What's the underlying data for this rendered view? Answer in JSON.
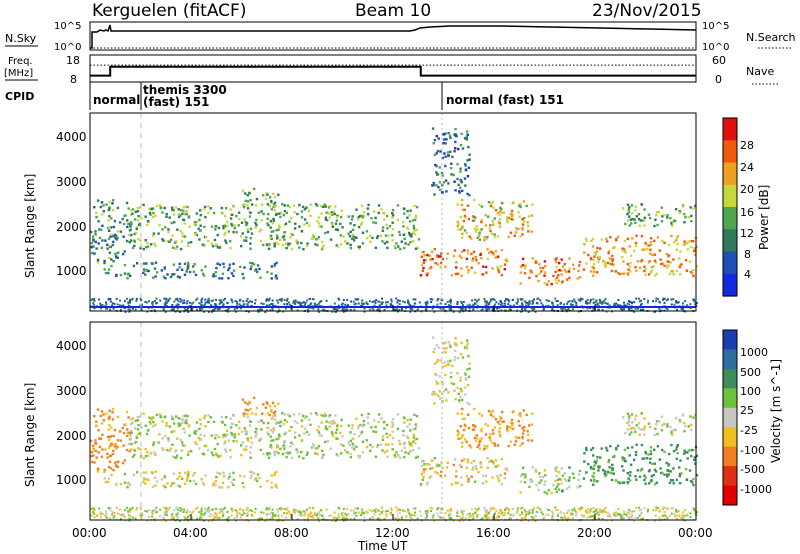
{
  "header": {
    "station": "Kerguelen (fitACF)",
    "beam": "Beam 10",
    "date": "23/Nov/2015"
  },
  "nsky": {
    "label": "N.Sky",
    "tick_top": "10^5",
    "tick_bottom": "10^0",
    "right_label": "N.Search",
    "right_tick_top": "10^5",
    "right_tick_bottom": "10^0"
  },
  "freq": {
    "label_line1": "Freq.",
    "label_line2": "[MHz]",
    "tick_top": "18",
    "tick_bottom": "8",
    "right_label": "Nave",
    "right_tick_top": "60",
    "right_tick_bottom": "0"
  },
  "cpid": {
    "label": "CPID",
    "segments": [
      {
        "start": 0.0,
        "end": 1.4,
        "text": "normal"
      },
      {
        "start": 1.4,
        "end": 13.95,
        "text_line1": "themis 3300",
        "text_line2": "(fast) 151"
      },
      {
        "start": 13.95,
        "end": 24.0,
        "text": "normal (fast) 151"
      }
    ]
  },
  "x_axis": {
    "label": "Time UT",
    "ticks": [
      "00:00",
      "04:00",
      "08:00",
      "12:00",
      "16:00",
      "20:00",
      "00:00"
    ],
    "range_hours": [
      0,
      24
    ]
  },
  "power_panel": {
    "ylabel": "Slant Range [km]",
    "yticks": [
      "1000",
      "2000",
      "3000",
      "4000"
    ],
    "ylim": [
      200,
      4600
    ],
    "colorbar_label": "Power [dB]",
    "colorbar_ticks": [
      "4",
      "8",
      "12",
      "16",
      "20",
      "24",
      "28"
    ],
    "colors": [
      "#1428e0",
      "#1f4fb5",
      "#2f7a5a",
      "#4fa64f",
      "#c6d83a",
      "#f0a020",
      "#f05a10",
      "#e01010"
    ]
  },
  "velocity_panel": {
    "ylabel": "Slant Range [km]",
    "yticks": [
      "1000",
      "2000",
      "3000",
      "4000"
    ],
    "ylim": [
      200,
      4600
    ],
    "colorbar_label": "Velocity [m s^-1]",
    "colorbar_ticks": [
      "1000",
      "500",
      "100",
      "25",
      "-25",
      "-100",
      "-500",
      "-1000"
    ],
    "colors": [
      "#1c3fb0",
      "#2a6fa0",
      "#3d8c5a",
      "#6cc23a",
      "#c8c8c0",
      "#f0c020",
      "#f08020",
      "#e03010",
      "#e00000"
    ]
  },
  "chart_data": {
    "type": "heatmap",
    "x_units": "hours UT",
    "y_units": "km",
    "noise_band_km": [
      200,
      500
    ],
    "echo_regions": [
      {
        "t0": 0.0,
        "t1": 1.6,
        "r0": 1300,
        "r1": 2700,
        "power_db": 12,
        "velocity": -150
      },
      {
        "t0": 0.5,
        "t1": 7.5,
        "r0": 950,
        "r1": 1300,
        "power_db": 10,
        "velocity": -20
      },
      {
        "t0": 1.5,
        "t1": 13.0,
        "r0": 1600,
        "r1": 2600,
        "power_db": 14,
        "velocity": 20
      },
      {
        "t0": 6.0,
        "t1": 7.5,
        "r0": 2500,
        "r1": 2950,
        "power_db": 14,
        "velocity": -120
      },
      {
        "t0": 13.0,
        "t1": 16.5,
        "r0": 1000,
        "r1": 1600,
        "power_db": 24,
        "velocity": -40
      },
      {
        "t0": 14.5,
        "t1": 17.5,
        "r0": 1800,
        "r1": 2700,
        "power_db": 20,
        "velocity": -110
      },
      {
        "t0": 17.0,
        "t1": 19.5,
        "r0": 800,
        "r1": 1400,
        "power_db": 24,
        "velocity": 40
      },
      {
        "t0": 19.5,
        "t1": 24.0,
        "r0": 1000,
        "r1": 1900,
        "power_db": 22,
        "velocity": 150
      },
      {
        "t0": 21.0,
        "t1": 24.0,
        "r0": 2100,
        "r1": 2600,
        "power_db": 14,
        "velocity": 10
      },
      {
        "t0": 13.5,
        "t1": 15.0,
        "r0": 2800,
        "r1": 4300,
        "power_db": 8,
        "velocity": -20
      }
    ],
    "freq_mhz": [
      {
        "start": 0.0,
        "end": 0.8,
        "value": 9.8
      },
      {
        "start": 0.8,
        "end": 13.1,
        "value": 13.5
      },
      {
        "start": 13.1,
        "end": 24.0,
        "value": 9.8
      }
    ],
    "nave_level": 14.2
  }
}
